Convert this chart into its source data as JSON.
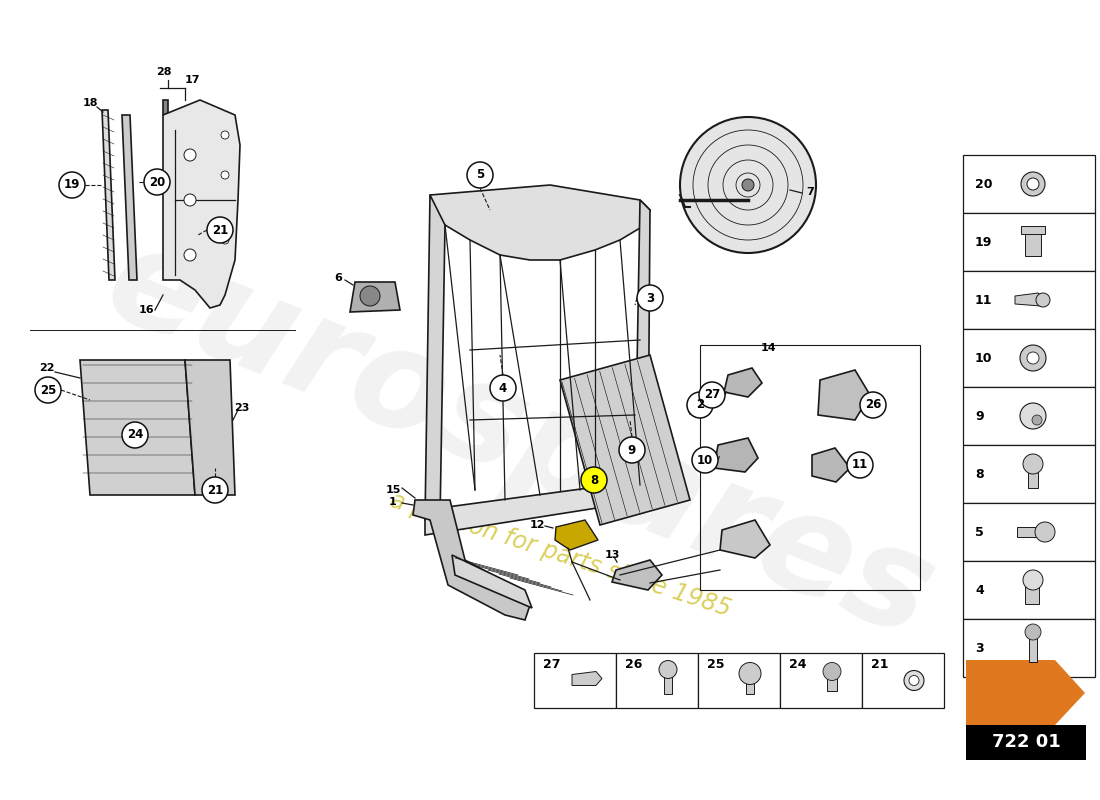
{
  "bg_color": "#ffffff",
  "lc": "#1a1a1a",
  "watermark1": "eurospares",
  "watermark2": "a passion for parts since 1985",
  "wm_color1": "#cccccc",
  "wm_color2": "#d4c840",
  "arrow_color": "#e07820",
  "part_number": "722 01",
  "pn_bg": "#000000",
  "pn_fg": "#ffffff",
  "right_nums": [
    20,
    19,
    11,
    10,
    9,
    8,
    5,
    4,
    3
  ],
  "bottom_nums": [
    27,
    26,
    25,
    24,
    21
  ],
  "callout_bg": "#ffffff",
  "callout_border": "#111111",
  "highlight_bg": "#ffff00"
}
